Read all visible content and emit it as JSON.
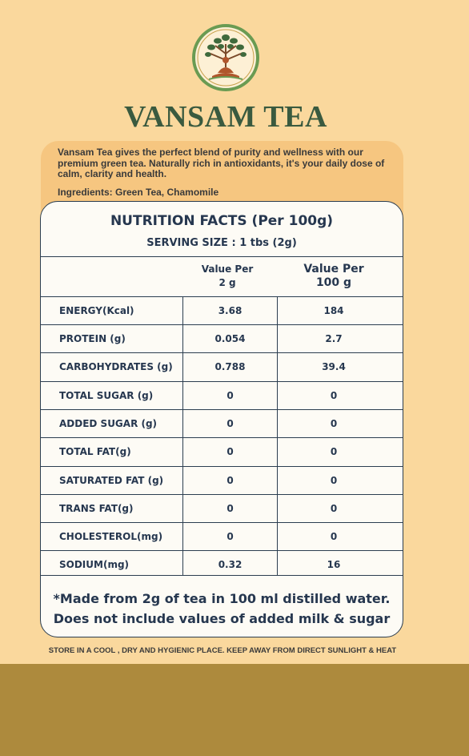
{
  "brand": {
    "name": "VANSAM TEA",
    "logo_icon": "tree-meditation-logo-icon"
  },
  "description": "Vansam Tea gives the perfect blend of purity and wellness with our premium green tea. Naturally rich in antioxidants, it's your daily dose of calm, clarity and health.",
  "ingredients": "Ingredients: Green Tea, Chamomile",
  "nutrition": {
    "title": "NUTRITION FACTS (Per 100g)",
    "serving": "SERVING SIZE : 1 tbs (2g)",
    "col_2g": "Value Per\n2 g",
    "col_100g": "Value Per\n100 g",
    "rows": [
      {
        "label": "ENERGY(Kcal)",
        "v2": "3.68",
        "v100": "184"
      },
      {
        "label": "PROTEIN (g)",
        "v2": "0.054",
        "v100": "2.7"
      },
      {
        "label": "CARBOHYDRATES (g)",
        "v2": "0.788",
        "v100": "39.4"
      },
      {
        "label": "TOTAL SUGAR (g)",
        "v2": "0",
        "v100": "0"
      },
      {
        "label": "ADDED SUGAR (g)",
        "v2": "0",
        "v100": "0"
      },
      {
        "label": "TOTAL FAT(g)",
        "v2": "0",
        "v100": "0"
      },
      {
        "label": "SATURATED FAT (g)",
        "v2": "0",
        "v100": "0"
      },
      {
        "label": "TRANS FAT(g)",
        "v2": "0",
        "v100": "0"
      },
      {
        "label": "CHOLESTEROL(mg)",
        "v2": "0",
        "v100": "0"
      },
      {
        "label": "SODIUM(mg)",
        "v2": "0.32",
        "v100": "16"
      }
    ],
    "note_line1": "*Made from 2g of tea in 100 ml distilled water.",
    "note_line2": "Does not include values of added milk & sugar"
  },
  "storage": "STORE IN A COOL , DRY AND HYGIENIC PLACE. KEEP AWAY FROM DIRECT SUNLIGHT & HEAT",
  "colors": {
    "background": "#fad89d",
    "brand_green": "#3a5a3f",
    "panel_text": "#26374f",
    "bottom_band": "#ad8a3d"
  }
}
